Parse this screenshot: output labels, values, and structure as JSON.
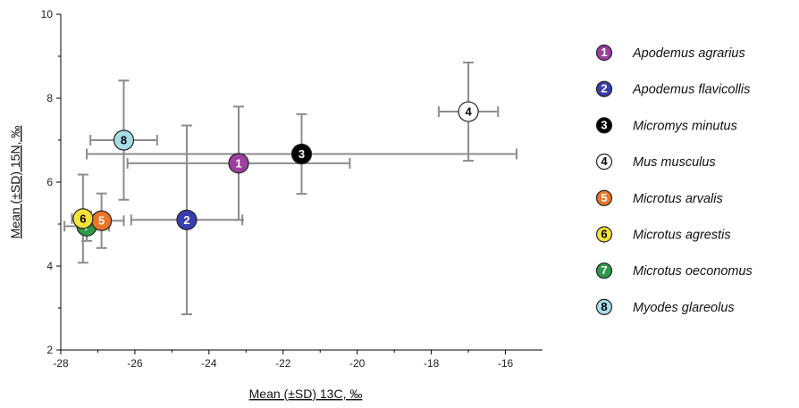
{
  "chart_data": {
    "type": "scatter",
    "title": "",
    "xlabel": "Mean (±SD) 13C, ‰",
    "ylabel": "Mean (±SD) 15N, ‰",
    "xlim": [
      -28,
      -15
    ],
    "ylim": [
      2,
      10
    ],
    "xticks": [
      "-28",
      "-26",
      "-24",
      "-22",
      "-20",
      "-18",
      "-16"
    ],
    "xtick_values": [
      -28,
      -26,
      -24,
      -22,
      -20,
      -18,
      -16
    ],
    "yticks": [
      "2",
      "4",
      "6",
      "8",
      "10"
    ],
    "ytick_values": [
      2,
      4,
      6,
      8,
      10
    ],
    "grid": false,
    "legend_position": "right",
    "error_bar_color": "#8c8c8c",
    "series": [
      {
        "id": "1",
        "name": "Apodemus agrarius",
        "color": "#9b3fa0",
        "text_color": "#ffffff",
        "x": -23.2,
        "y": 6.45,
        "x_err": 3.0,
        "y_err": 1.35
      },
      {
        "id": "2",
        "name": "Apodemus flavicollis",
        "color": "#3a3dae",
        "text_color": "#ffffff",
        "x": -24.6,
        "y": 5.1,
        "x_err": 1.5,
        "y_err": 2.25
      },
      {
        "id": "3",
        "name": "Micromys minutus",
        "color": "#000000",
        "text_color": "#ffffff",
        "x": -21.5,
        "y": 6.67,
        "x_err": 5.8,
        "y_err": 0.95
      },
      {
        "id": "4",
        "name": "Mus musculus",
        "color": "#ffffff",
        "text_color": "#000000",
        "x": -17.0,
        "y": 7.68,
        "x_err": 0.8,
        "y_err": 1.17
      },
      {
        "id": "5",
        "name": "Microtus arvalis",
        "color": "#e8752a",
        "text_color": "#ffffff",
        "x": -26.9,
        "y": 5.08,
        "x_err": 0.6,
        "y_err": 0.65
      },
      {
        "id": "6",
        "name": "Microtus agrestis",
        "color": "#f5e23a",
        "text_color": "#000000",
        "x": -27.4,
        "y": 5.13,
        "x_err": 0.3,
        "y_err": 1.05
      },
      {
        "id": "7",
        "name": "Microtus oeconomus",
        "color": "#2f9a49",
        "text_color": "#ffffff",
        "x": -27.3,
        "y": 4.95,
        "x_err": 0.6,
        "y_err": 0.35
      },
      {
        "id": "8",
        "name": "Myodes glareolus",
        "color": "#a9dde6",
        "text_color": "#000000",
        "x": -26.3,
        "y": 7.0,
        "x_err": 0.9,
        "y_err": 1.42
      }
    ]
  }
}
